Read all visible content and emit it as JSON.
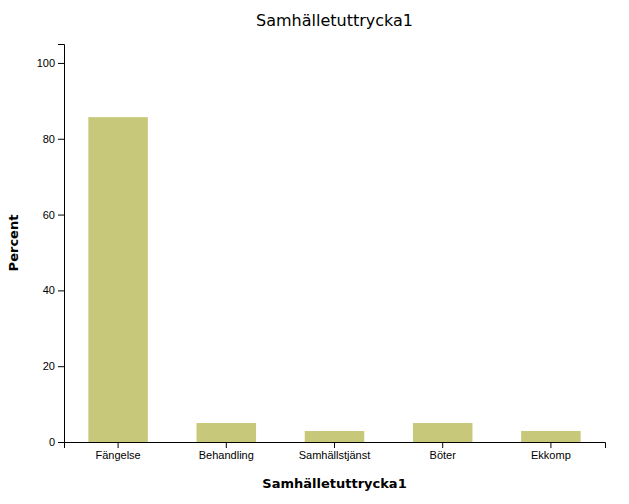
{
  "chart_data": {
    "type": "bar",
    "title": "Samhälletuttrycka1",
    "xlabel": "Samhälletuttrycka1",
    "ylabel": "Percent",
    "categories": [
      "Fängelse",
      "Behandling",
      "Samhällstjänst",
      "Böter",
      "Ekkomp"
    ],
    "values": [
      85.7,
      5.0,
      2.9,
      5.0,
      2.9
    ],
    "color": "#c8c87a",
    "ylim": [
      0,
      105
    ],
    "yticks": [
      0,
      20,
      40,
      60,
      80,
      100
    ],
    "grid": false
  }
}
